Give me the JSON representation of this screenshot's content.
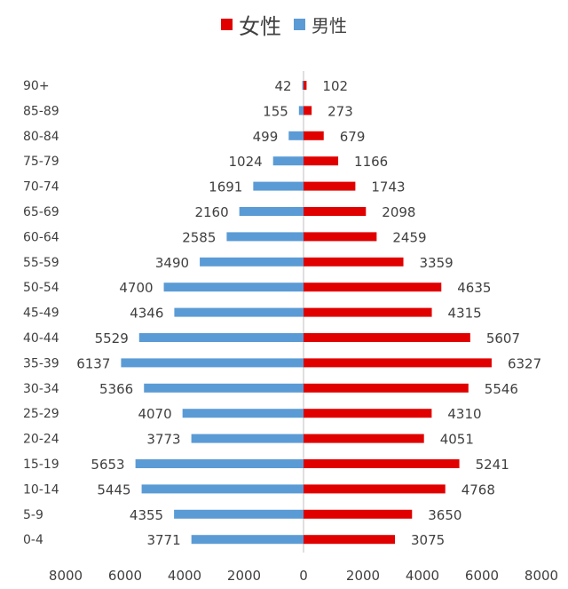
{
  "chart_data": {
    "type": "bar",
    "orientation": "horizontal",
    "layout": "population-pyramid",
    "title": "",
    "xlabel": "",
    "ylabel": "",
    "grid": false,
    "legend_placement": "top",
    "categories": [
      "0-4",
      "5-9",
      "10-14",
      "15-19",
      "20-24",
      "25-29",
      "30-34",
      "35-39",
      "40-44",
      "45-49",
      "50-54",
      "55-59",
      "60-64",
      "65-69",
      "70-74",
      "75-79",
      "80-84",
      "85-89",
      "90+"
    ],
    "series": [
      {
        "name": "女性",
        "side": "right",
        "color": "#e00000",
        "values": [
          3075,
          3650,
          4768,
          5241,
          4051,
          4310,
          5546,
          6327,
          5607,
          4315,
          4635,
          3359,
          2459,
          2098,
          1743,
          1166,
          679,
          273,
          102
        ]
      },
      {
        "name": "男性",
        "side": "left",
        "color": "#5b9bd5",
        "values": [
          3771,
          4355,
          5445,
          5653,
          3773,
          4070,
          5366,
          6137,
          5529,
          4346,
          4700,
          3490,
          2585,
          2160,
          1691,
          1024,
          499,
          155,
          42
        ]
      }
    ],
    "xlim": [
      -8000,
      8000
    ],
    "xticks": [
      "8000",
      "6000",
      "4000",
      "2000",
      "0",
      "2000",
      "4000",
      "6000",
      "8000"
    ]
  }
}
